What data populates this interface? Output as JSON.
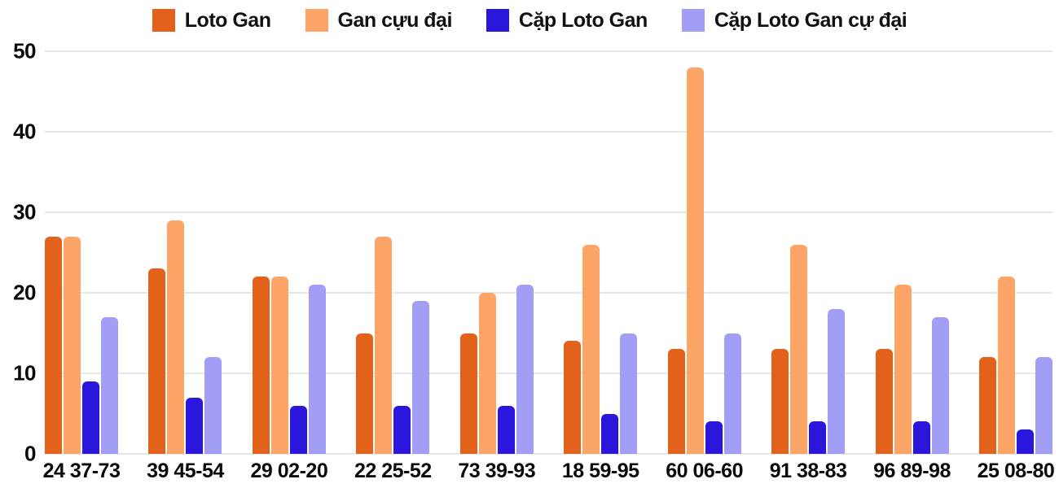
{
  "legend": {
    "items": [
      {
        "label": "Loto Gan",
        "color": "#e2621b"
      },
      {
        "label": "Gan cựu đại",
        "color": "#fda467"
      },
      {
        "label": "Cặp Loto Gan",
        "color": "#2b16dc"
      },
      {
        "label": "Cặp Loto Gan cự đại",
        "color": "#a39ef5"
      }
    ]
  },
  "chart_data": {
    "type": "bar",
    "title": "",
    "xlabel": "",
    "ylabel": "",
    "categories": [
      "24 37-73",
      "39 45-54",
      "29 02-20",
      "22 25-52",
      "73 39-93",
      "18 59-95",
      "60 06-60",
      "91 38-83",
      "96 89-98",
      "25 08-80"
    ],
    "series": [
      {
        "name": "Loto Gan",
        "color": "#e2621b",
        "values": [
          27,
          23,
          22,
          15,
          15,
          14,
          13,
          13,
          13,
          12
        ]
      },
      {
        "name": "Gan cựu đại",
        "color": "#fda467",
        "values": [
          27,
          29,
          22,
          27,
          20,
          26,
          48,
          26,
          21,
          22
        ]
      },
      {
        "name": "Cặp Loto Gan",
        "color": "#2b16dc",
        "values": [
          9,
          7,
          6,
          6,
          6,
          5,
          4,
          4,
          4,
          3
        ]
      },
      {
        "name": "Cặp Loto Gan cự đại",
        "color": "#a39ef5",
        "values": [
          17,
          12,
          21,
          19,
          21,
          15,
          15,
          18,
          17,
          12
        ]
      }
    ],
    "ylim": [
      0,
      50
    ],
    "yticks": [
      0,
      10,
      20,
      30,
      40,
      50
    ],
    "grid": true,
    "grid_color": "#e7e7e7",
    "legend_position": "top",
    "text_color": "#0a0a0a"
  }
}
